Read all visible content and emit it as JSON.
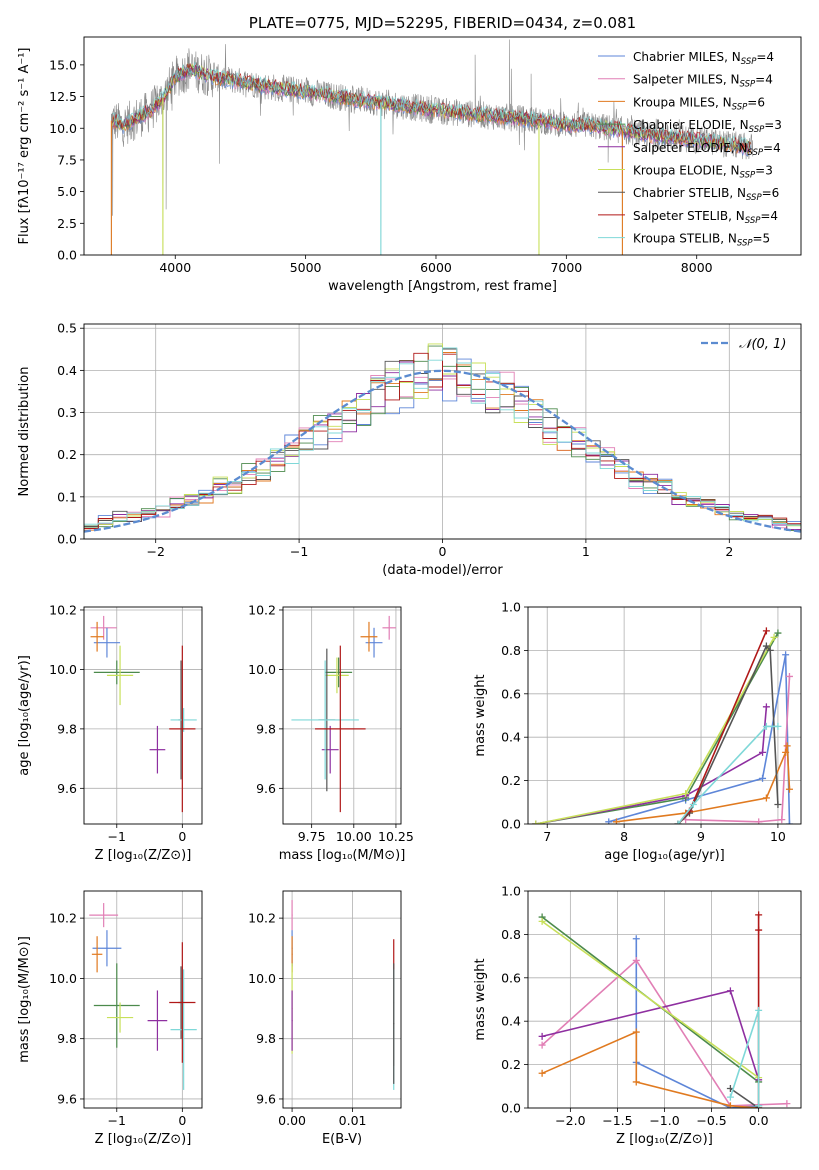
{
  "palette": {
    "chabrier_miles": "#5e86d8",
    "salpeter_miles": "#e17fb5",
    "kroupa_miles": "#e07a20",
    "chabrier_elodie": "#4c8a4c",
    "salpeter_elodie": "#8e2fa0",
    "kroupa_elodie": "#c8e05a",
    "chabrier_stelib": "#555555",
    "salpeter_stelib": "#b01818",
    "kroupa_stelib": "#7fd8d8",
    "gaussian": "#5b8bd0",
    "data_spectrum": "#888888"
  },
  "chart_data": [
    {
      "id": "spectrum",
      "type": "line",
      "title": "PLATE=0775, MJD=52295, FIBERID=0434, z=0.081",
      "xlabel": "wavelength [Angstrom, rest frame]",
      "ylabel": "Flux [fλ10⁻¹⁷ erg cm⁻² s⁻¹ A⁻¹]",
      "xlim": [
        3300,
        8800
      ],
      "ylim": [
        0,
        17.2
      ],
      "xticks": [
        4000,
        5000,
        6000,
        7000,
        8000
      ],
      "yticks": [
        0.0,
        2.5,
        5.0,
        7.5,
        10.0,
        12.5,
        15.0
      ],
      "grid": false,
      "legend_position": "top-right",
      "legend": [
        {
          "label": "Chabrier MILES, N",
          "sub": "SSP",
          "suffix": "=4",
          "color_key": "chabrier_miles"
        },
        {
          "label": "Salpeter MILES, N",
          "sub": "SSP",
          "suffix": "=4",
          "color_key": "salpeter_miles"
        },
        {
          "label": "Kroupa MILES, N",
          "sub": "SSP",
          "suffix": "=6",
          "color_key": "kroupa_miles"
        },
        {
          "label": "Chabrier ELODIE, N",
          "sub": "SSP",
          "suffix": "=3",
          "color_key": "chabrier_elodie"
        },
        {
          "label": "Salpeter ELODIE, N",
          "sub": "SSP",
          "suffix": "=4",
          "color_key": "salpeter_elodie"
        },
        {
          "label": "Kroupa ELODIE, N",
          "sub": "SSP",
          "suffix": "=3",
          "color_key": "kroupa_elodie"
        },
        {
          "label": "Chabrier STELIB, N",
          "sub": "SSP",
          "suffix": "=6",
          "color_key": "chabrier_stelib"
        },
        {
          "label": "Salpeter STELIB, N",
          "sub": "SSP",
          "suffix": "=4",
          "color_key": "salpeter_stelib"
        },
        {
          "label": "Kroupa STELIB, N",
          "sub": "SSP",
          "suffix": "=5",
          "color_key": "kroupa_stelib"
        }
      ],
      "continuum_x": [
        3520,
        3600,
        3700,
        3800,
        3900,
        4000,
        4100,
        4200,
        4300,
        4500,
        4700,
        5000,
        5300,
        5600,
        6000,
        6400,
        6800,
        7000,
        7200,
        7400,
        7600,
        8000,
        8400
      ],
      "continuum_y": [
        10.6,
        10.2,
        10.8,
        11.3,
        12.3,
        14.0,
        14.6,
        14.4,
        14.0,
        13.7,
        13.3,
        12.9,
        12.4,
        12.0,
        11.4,
        11.0,
        10.6,
        10.3,
        10.2,
        9.9,
        9.5,
        9.1,
        8.5
      ],
      "spikes": [
        {
          "x": 3510,
          "y": 0.0
        },
        {
          "x": 3520,
          "y": 3.1
        },
        {
          "x": 3905,
          "y": 0.0
        },
        {
          "x": 3930,
          "y": 3.6
        },
        {
          "x": 4340,
          "y": 7.2
        },
        {
          "x": 4105,
          "y": 16.3
        },
        {
          "x": 5577,
          "y": 0.0
        },
        {
          "x": 6300,
          "y": 15.8
        },
        {
          "x": 6565,
          "y": 17.0
        },
        {
          "x": 6580,
          "y": 14.7
        },
        {
          "x": 6730,
          "y": 14.3
        },
        {
          "x": 6790,
          "y": 0.0
        },
        {
          "x": 7320,
          "y": 7.3
        },
        {
          "x": 7430,
          "y": 0.0
        }
      ]
    },
    {
      "id": "residuals",
      "type": "line",
      "xlabel": "(data-model)/error",
      "ylabel": "Normed distribution",
      "xlim": [
        -2.5,
        2.5
      ],
      "ylim": [
        0,
        0.51
      ],
      "xticks": [
        -2,
        -1,
        0,
        1,
        2
      ],
      "yticks": [
        0.0,
        0.1,
        0.2,
        0.3,
        0.4,
        0.5
      ],
      "grid": true,
      "legend_position": "top-right",
      "gaussian_label": "𝒩(0, 1)",
      "bin_width": 0.1,
      "hist_base": [
        0.03,
        0.04,
        0.05,
        0.05,
        0.06,
        0.07,
        0.08,
        0.09,
        0.1,
        0.12,
        0.13,
        0.15,
        0.17,
        0.19,
        0.21,
        0.23,
        0.25,
        0.27,
        0.3,
        0.32,
        0.34,
        0.36,
        0.38,
        0.39,
        0.4,
        0.4,
        0.39,
        0.38,
        0.36,
        0.35,
        0.32,
        0.3,
        0.27,
        0.25,
        0.23,
        0.21,
        0.19,
        0.17,
        0.15,
        0.13,
        0.12,
        0.1,
        0.09,
        0.08,
        0.07,
        0.06,
        0.05,
        0.05,
        0.04,
        0.03
      ]
    },
    {
      "id": "age_vs_z",
      "type": "scatter",
      "xlabel": "Z [log₁₀(Z/Z⊙)]",
      "ylabel": "age  [log₁₀(age/yr)]",
      "xlim": [
        -1.5,
        0.3
      ],
      "ylim": [
        9.48,
        10.21
      ],
      "xticks": [
        -1,
        0
      ],
      "yticks": [
        9.6,
        9.8,
        10.0,
        10.2
      ],
      "grid": true,
      "points": [
        {
          "color_key": "salpeter_miles",
          "x": -1.2,
          "y": 10.14,
          "xerr": 0.2,
          "yerr": 0.04
        },
        {
          "color_key": "chabrier_miles",
          "x": -1.15,
          "y": 10.09,
          "xerr": 0.2,
          "yerr": 0.05
        },
        {
          "color_key": "kroupa_miles",
          "x": -1.3,
          "y": 10.11,
          "xerr": 0.1,
          "yerr": 0.05
        },
        {
          "color_key": "chabrier_elodie",
          "x": -1.0,
          "y": 9.99,
          "xerr": 0.35,
          "yerr": 0.04
        },
        {
          "color_key": "kroupa_elodie",
          "x": -0.95,
          "y": 9.98,
          "xerr": 0.2,
          "yerr": 0.1
        },
        {
          "color_key": "salpeter_elodie",
          "x": -0.38,
          "y": 9.73,
          "xerr": 0.12,
          "yerr": 0.08
        },
        {
          "color_key": "chabrier_stelib",
          "x": -0.02,
          "y": 9.83,
          "xerr": 0.04,
          "yerr": 0.2
        },
        {
          "color_key": "kroupa_stelib",
          "x": 0.02,
          "y": 9.83,
          "xerr": 0.2,
          "yerr": 0.04
        },
        {
          "color_key": "salpeter_stelib",
          "x": 0.0,
          "y": 9.8,
          "xerr": 0.2,
          "yerr": 0.28
        }
      ]
    },
    {
      "id": "age_vs_mass",
      "type": "scatter",
      "xlabel": "mass [log₁₀(M/M⊙)]",
      "ylabel": "",
      "xlim": [
        9.58,
        10.28
      ],
      "ylim": [
        9.48,
        10.21
      ],
      "xticks": [
        9.75,
        10.0,
        10.25
      ],
      "yticks": [
        9.6,
        9.8,
        10.0,
        10.2
      ],
      "grid": true,
      "points": [
        {
          "color_key": "salpeter_miles",
          "x": 10.21,
          "y": 10.14,
          "xerr": 0.04,
          "yerr": 0.04
        },
        {
          "color_key": "chabrier_miles",
          "x": 10.12,
          "y": 10.09,
          "xerr": 0.05,
          "yerr": 0.05
        },
        {
          "color_key": "kroupa_miles",
          "x": 10.09,
          "y": 10.11,
          "xerr": 0.05,
          "yerr": 0.05
        },
        {
          "color_key": "chabrier_elodie",
          "x": 9.91,
          "y": 9.99,
          "xerr": 0.08,
          "yerr": 0.05
        },
        {
          "color_key": "kroupa_elodie",
          "x": 9.9,
          "y": 9.98,
          "xerr": 0.07,
          "yerr": 0.06
        },
        {
          "color_key": "salpeter_elodie",
          "x": 9.86,
          "y": 9.73,
          "xerr": 0.05,
          "yerr": 0.08
        },
        {
          "color_key": "chabrier_stelib",
          "x": 9.84,
          "y": 9.83,
          "xerr": 0.05,
          "yerr": 0.24
        },
        {
          "color_key": "kroupa_stelib",
          "x": 9.83,
          "y": 9.83,
          "xerr": 0.2,
          "yerr": 0.2
        },
        {
          "color_key": "salpeter_stelib",
          "x": 9.92,
          "y": 9.8,
          "xerr": 0.15,
          "yerr": 0.28
        }
      ]
    },
    {
      "id": "massweight_vs_age",
      "type": "line",
      "xlabel": "age  [log₁₀(age/yr)]",
      "ylabel": "mass weight",
      "xlim": [
        6.75,
        10.3
      ],
      "ylim": [
        0,
        1.0
      ],
      "xticks": [
        7,
        8,
        9,
        10
      ],
      "yticks": [
        0.0,
        0.2,
        0.4,
        0.6,
        0.8,
        1.0
      ],
      "grid": true,
      "series": [
        {
          "color_key": "chabrier_miles",
          "x": [
            7.8,
            8.8,
            9.8,
            10.1,
            10.15
          ],
          "y": [
            0.01,
            0.11,
            0.21,
            0.78,
            0.0
          ]
        },
        {
          "color_key": "salpeter_miles",
          "x": [
            8.8,
            9.75,
            10.05,
            10.15
          ],
          "y": [
            0.02,
            0.01,
            0.02,
            0.68
          ]
        },
        {
          "color_key": "kroupa_miles",
          "x": [
            7.9,
            8.8,
            9.85,
            10.1,
            10.12,
            10.15
          ],
          "y": [
            0.01,
            0.05,
            0.12,
            0.33,
            0.36,
            0.16
          ]
        },
        {
          "color_key": "chabrier_elodie",
          "x": [
            6.85,
            8.8,
            10.0
          ],
          "y": [
            0.0,
            0.12,
            0.88
          ]
        },
        {
          "color_key": "salpeter_elodie",
          "x": [
            6.85,
            8.8,
            9.8,
            9.85
          ],
          "y": [
            0.0,
            0.13,
            0.33,
            0.54
          ]
        },
        {
          "color_key": "kroupa_elodie",
          "x": [
            6.85,
            8.8,
            9.95
          ],
          "y": [
            0.0,
            0.14,
            0.86
          ]
        },
        {
          "color_key": "chabrier_stelib",
          "x": [
            8.7,
            8.85,
            9.85,
            9.9,
            10.0
          ],
          "y": [
            0.0,
            0.05,
            0.82,
            0.8,
            0.09
          ]
        },
        {
          "color_key": "salpeter_stelib",
          "x": [
            8.7,
            8.85,
            9.85
          ],
          "y": [
            0.0,
            0.06,
            0.89
          ]
        },
        {
          "color_key": "kroupa_stelib",
          "x": [
            8.7,
            8.9,
            9.85,
            10.0
          ],
          "y": [
            0.0,
            0.09,
            0.45,
            0.45
          ]
        }
      ]
    },
    {
      "id": "mass_vs_z",
      "type": "scatter",
      "xlabel": "Z [log₁₀(Z/Z⊙)]",
      "ylabel": "mass [log₁₀(M/M⊙)]",
      "xlim": [
        -1.5,
        0.3
      ],
      "ylim": [
        9.57,
        10.29
      ],
      "xticks": [
        -1,
        0
      ],
      "yticks": [
        9.6,
        9.8,
        10.0,
        10.2
      ],
      "grid": true,
      "points": [
        {
          "color_key": "salpeter_miles",
          "x": -1.2,
          "y": 10.21,
          "xerr": 0.22,
          "yerr": 0.04
        },
        {
          "color_key": "chabrier_miles",
          "x": -1.15,
          "y": 10.1,
          "xerr": 0.22,
          "yerr": 0.06
        },
        {
          "color_key": "kroupa_miles",
          "x": -1.3,
          "y": 10.08,
          "xerr": 0.08,
          "yerr": 0.06
        },
        {
          "color_key": "chabrier_elodie",
          "x": -1.0,
          "y": 9.91,
          "xerr": 0.35,
          "yerr": 0.14
        },
        {
          "color_key": "kroupa_elodie",
          "x": -0.95,
          "y": 9.87,
          "xerr": 0.2,
          "yerr": 0.05
        },
        {
          "color_key": "salpeter_elodie",
          "x": -0.38,
          "y": 9.86,
          "xerr": 0.15,
          "yerr": 0.1
        },
        {
          "color_key": "chabrier_stelib",
          "x": -0.02,
          "y": 9.92,
          "xerr": 0.04,
          "yerr": 0.12
        },
        {
          "color_key": "kroupa_stelib",
          "x": 0.02,
          "y": 9.83,
          "xerr": 0.2,
          "yerr": 0.2
        },
        {
          "color_key": "salpeter_stelib",
          "x": 0.0,
          "y": 9.92,
          "xerr": 0.2,
          "yerr": 0.2
        }
      ]
    },
    {
      "id": "ebv",
      "type": "scatter",
      "xlabel": "E(B-V)",
      "ylabel": "",
      "xlim": [
        -0.0015,
        0.018
      ],
      "ylim": [
        9.57,
        10.29
      ],
      "xticks": [
        0.0,
        0.01
      ],
      "yticks": [
        9.6,
        9.8,
        10.0,
        10.2
      ],
      "grid": true,
      "points": [
        {
          "color_key": "salpeter_miles",
          "x": 0.0,
          "y": 10.21,
          "xerr": 0.0001,
          "yerr": 0.05
        },
        {
          "color_key": "chabrier_miles",
          "x": 0.0,
          "y": 10.1,
          "xerr": 0.0001,
          "yerr": 0.06
        },
        {
          "color_key": "kroupa_miles",
          "x": 0.0,
          "y": 10.08,
          "xerr": 0.0001,
          "yerr": 0.06
        },
        {
          "color_key": "kroupa_elodie",
          "x": 0.0,
          "y": 9.9,
          "xerr": 0.0001,
          "yerr": 0.15
        },
        {
          "color_key": "salpeter_elodie",
          "x": 0.0,
          "y": 9.86,
          "xerr": 0.0001,
          "yerr": 0.1
        },
        {
          "color_key": "salpeter_stelib",
          "x": 0.0168,
          "y": 9.92,
          "xerr": 0.0001,
          "yerr": 0.21
        },
        {
          "color_key": "kroupa_stelib",
          "x": 0.0168,
          "y": 9.83,
          "xerr": 0.0001,
          "yerr": 0.2
        },
        {
          "color_key": "chabrier_stelib",
          "x": 0.0168,
          "y": 9.85,
          "xerr": 0.0001,
          "yerr": 0.2
        }
      ]
    },
    {
      "id": "massweight_vs_z",
      "type": "line",
      "xlabel": "Z [log₁₀(Z/Z⊙)]",
      "ylabel": "mass weight",
      "xlim": [
        -2.45,
        0.45
      ],
      "ylim": [
        0,
        1.0
      ],
      "xticks": [
        -2.0,
        -1.5,
        -1.0,
        -0.5,
        0.0
      ],
      "yticks": [
        0.0,
        0.2,
        0.4,
        0.6,
        0.8,
        1.0
      ],
      "grid": true,
      "series": [
        {
          "color_key": "chabrier_miles",
          "x": [
            -1.3,
            -1.3,
            -0.3,
            0.0
          ],
          "y": [
            0.78,
            0.21,
            0.0,
            0.01
          ]
        },
        {
          "color_key": "salpeter_miles",
          "x": [
            -2.3,
            -1.3,
            -0.3,
            0.3
          ],
          "y": [
            0.29,
            0.68,
            0.01,
            0.02
          ]
        },
        {
          "color_key": "kroupa_miles",
          "x": [
            -2.3,
            -1.3,
            -1.3,
            -0.3,
            0.0
          ],
          "y": [
            0.16,
            0.35,
            0.12,
            0.01,
            0.0
          ]
        },
        {
          "color_key": "chabrier_elodie",
          "x": [
            -2.3,
            0.0
          ],
          "y": [
            0.88,
            0.12
          ]
        },
        {
          "color_key": "salpeter_elodie",
          "x": [
            -2.3,
            -0.3,
            0.0
          ],
          "y": [
            0.33,
            0.54,
            0.13
          ]
        },
        {
          "color_key": "kroupa_elodie",
          "x": [
            -2.3,
            0.0
          ],
          "y": [
            0.86,
            0.14
          ]
        },
        {
          "color_key": "chabrier_stelib",
          "x": [
            -0.3,
            0.0
          ],
          "y": [
            0.09,
            0.0
          ]
        },
        {
          "color_key": "salpeter_stelib",
          "x": [
            0.0,
            0.0,
            0.0
          ],
          "y": [
            0.89,
            0.82,
            0.0
          ]
        },
        {
          "color_key": "kroupa_stelib",
          "x": [
            -0.3,
            0.0,
            0.0
          ],
          "y": [
            0.05,
            0.45,
            0.01
          ]
        }
      ]
    }
  ]
}
